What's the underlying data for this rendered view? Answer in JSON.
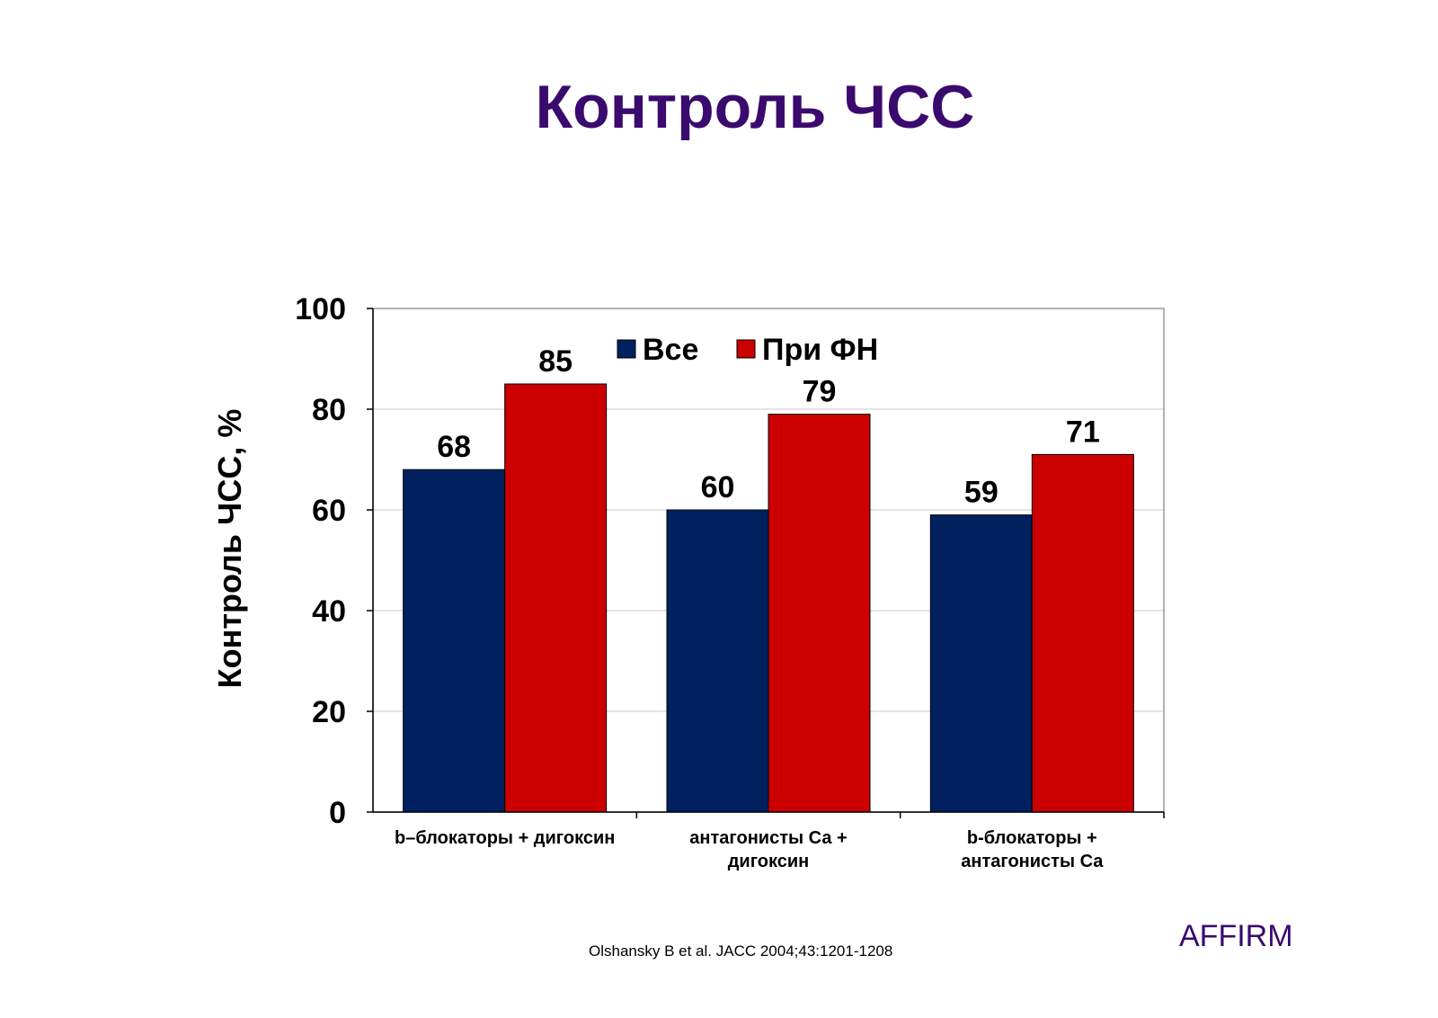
{
  "slide": {
    "title": "Контроль ЧСС",
    "citation": "Olshansky B et al. JACC 2004;43:1201-1208",
    "study_label": "AFFIRM"
  },
  "chart_data": {
    "type": "bar",
    "title": "",
    "xlabel": "",
    "ylabel": "Контроль ЧСС, %",
    "ylim": [
      0,
      100
    ],
    "yticks": [
      0,
      20,
      40,
      60,
      80,
      100
    ],
    "grid": true,
    "legend_position": "top-center",
    "categories": [
      [
        "b–блокаторы + дигоксин"
      ],
      [
        "антагонисты Са +",
        "дигоксин"
      ],
      [
        "b-блокаторы +",
        "антагонисты Са"
      ]
    ],
    "series": [
      {
        "name": "Все",
        "color": "#002060",
        "values": [
          68,
          60,
          59
        ]
      },
      {
        "name": "При ФН",
        "color": "#cc0000",
        "values": [
          85,
          79,
          71
        ]
      }
    ]
  }
}
